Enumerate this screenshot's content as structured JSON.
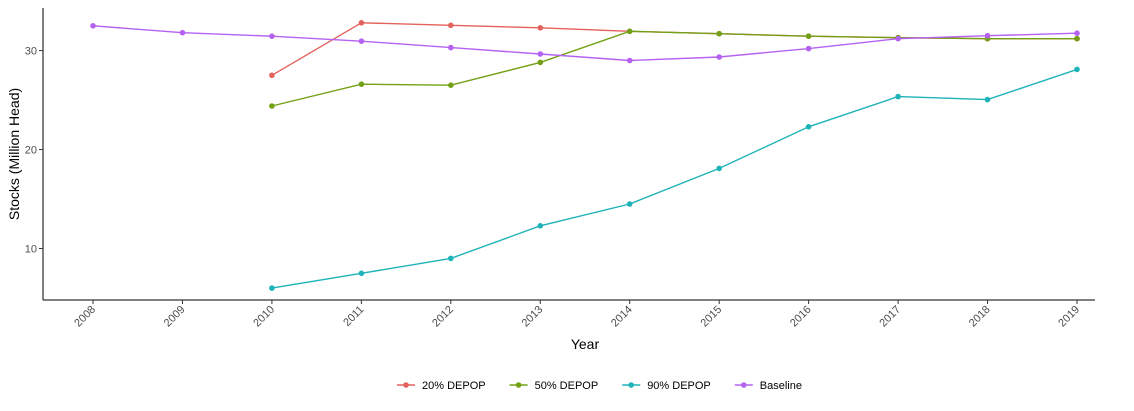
{
  "chart_data": {
    "type": "line",
    "title": "",
    "xlabel": "Year",
    "ylabel": "Stocks (Million Head)",
    "x": [
      2008,
      2009,
      2010,
      2011,
      2012,
      2013,
      2014,
      2015,
      2016,
      2017,
      2018,
      2019
    ],
    "x_tick_labels": [
      "2008",
      "2009",
      "2010",
      "2011",
      "2012",
      "2013",
      "2014",
      "2015",
      "2016",
      "2017",
      "2018",
      "2019"
    ],
    "y_ticks": [
      10,
      20,
      30
    ],
    "y_tick_labels": [
      "10",
      "20",
      "30"
    ],
    "ylim": [
      4.8,
      34.3
    ],
    "grid": false,
    "legend_position": "bottom",
    "series": [
      {
        "name": "20% DEPOP",
        "color": "#e5625c",
        "x": [
          2010,
          2011,
          2012,
          2013,
          2014,
          2015,
          2016,
          2017,
          2018,
          2019
        ],
        "values": [
          27.5,
          32.8,
          32.55,
          32.3,
          31.95,
          31.7,
          31.45,
          31.3,
          31.2,
          31.2
        ]
      },
      {
        "name": "50% DEPOP",
        "color": "#73a116",
        "x": [
          2010,
          2011,
          2012,
          2013,
          2014,
          2015,
          2016,
          2017,
          2018,
          2019
        ],
        "values": [
          24.4,
          26.6,
          26.5,
          28.8,
          31.95,
          31.7,
          31.45,
          31.3,
          31.2,
          31.2
        ]
      },
      {
        "name": "90% DEPOP",
        "color": "#1eb3b9",
        "x": [
          2010,
          2011,
          2012,
          2013,
          2014,
          2015,
          2016,
          2017,
          2018,
          2019
        ],
        "values": [
          6.0,
          7.5,
          9.0,
          12.3,
          14.5,
          18.1,
          22.3,
          25.35,
          25.05,
          28.1
        ]
      },
      {
        "name": "Baseline",
        "color": "#b562f2",
        "x": [
          2008,
          2009,
          2010,
          2011,
          2012,
          2013,
          2014,
          2015,
          2016,
          2017,
          2018,
          2019
        ],
        "values": [
          32.5,
          31.8,
          31.45,
          30.95,
          30.3,
          29.65,
          29.0,
          29.35,
          30.2,
          31.2,
          31.5,
          31.75
        ]
      }
    ]
  }
}
